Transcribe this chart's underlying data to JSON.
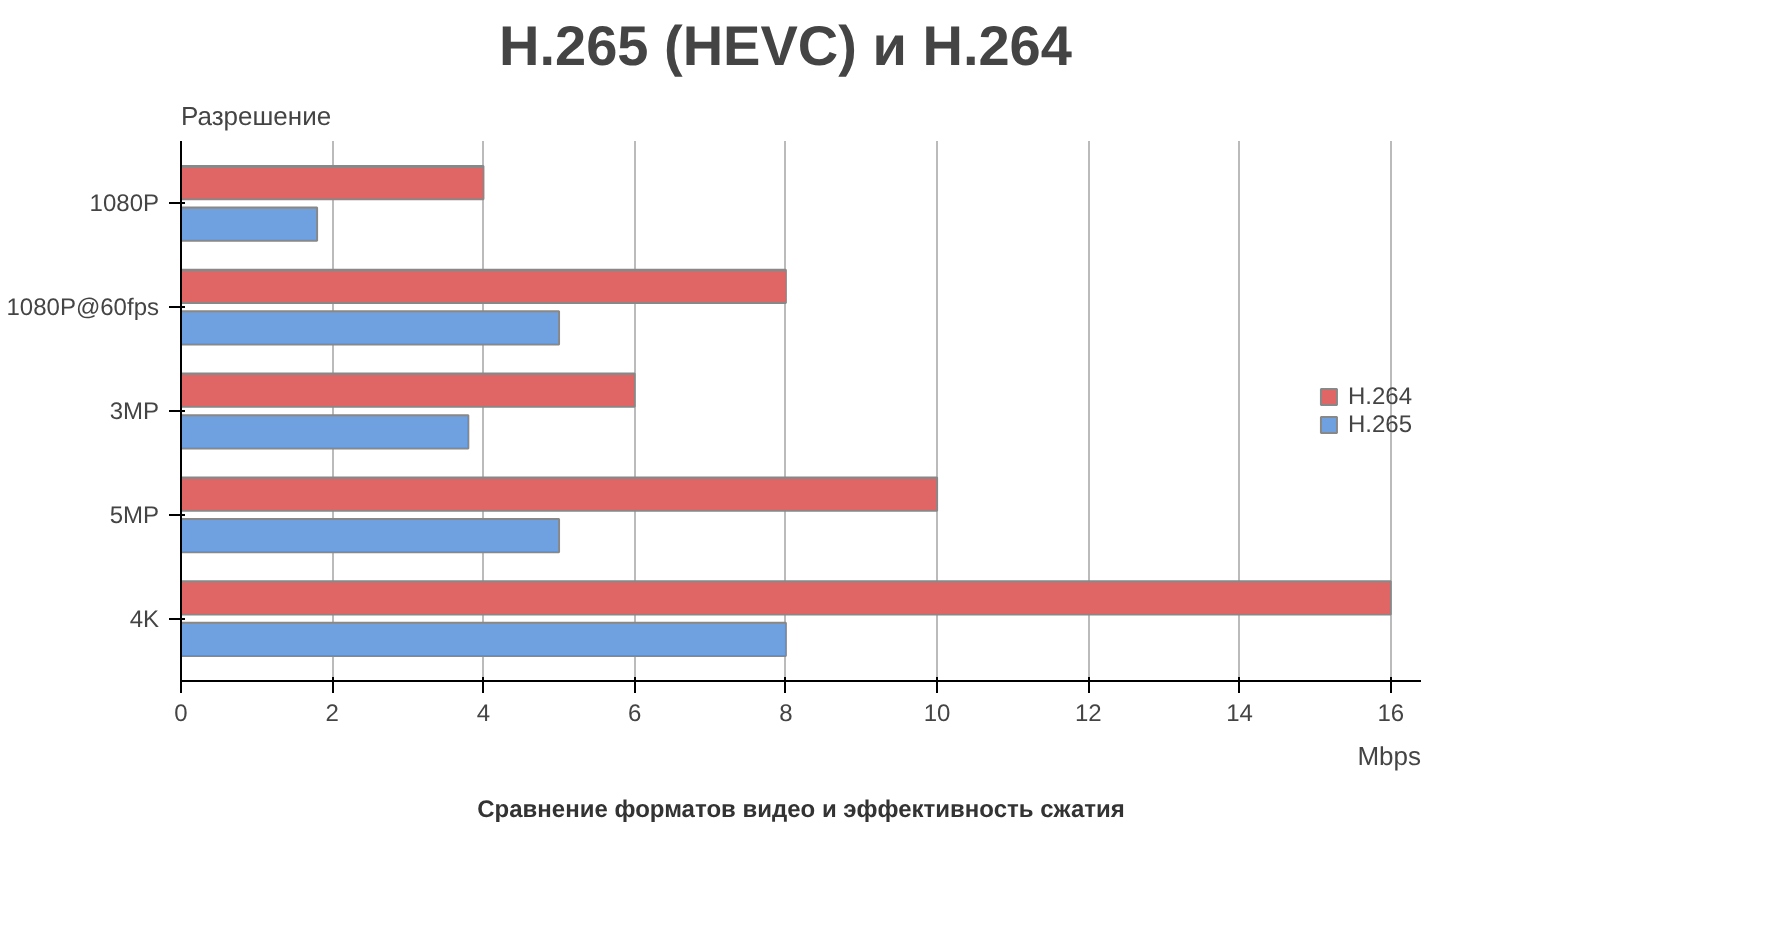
{
  "chart_data": {
    "type": "bar",
    "orientation": "horizontal",
    "title": "H.265 (HEVC)  и  H.264",
    "ylabel": "Разрешение",
    "xlabel": "Mbps",
    "categories": [
      "1080P",
      "1080P@60fps",
      "3MP",
      "5MP",
      "4K"
    ],
    "series": [
      {
        "name": "H.264",
        "color": "#e06666",
        "values": [
          4,
          8,
          6,
          10,
          16
        ]
      },
      {
        "name": "H.265",
        "color": "#6fa0e0",
        "values": [
          1.8,
          5,
          3.8,
          5,
          8
        ]
      }
    ],
    "xlim": [
      0,
      16.4
    ],
    "xticks": [
      0,
      2,
      4,
      6,
      8,
      10,
      12,
      14,
      16
    ],
    "grid": "x",
    "legend": "right",
    "annotations": [
      "Сравнение форматов видео и эффективность сжатия"
    ]
  }
}
